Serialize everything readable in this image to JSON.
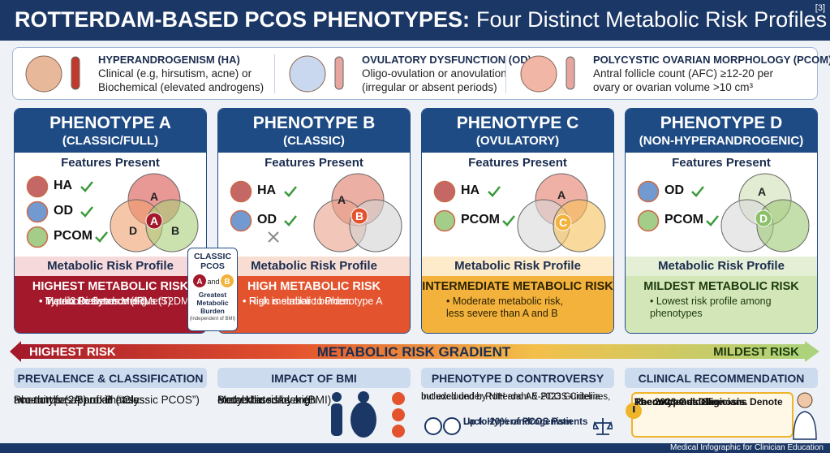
{
  "header": {
    "title_bold": "ROTTERDAM-BASED PCOS PHENOTYPES:",
    "title_rest": "Four Distinct Metabolic Risk Profiles",
    "ref": "[3]"
  },
  "criteria": [
    {
      "title": "HYPERANDROGENISM (HA)",
      "lines": [
        "Clinical (e.g, hirsutism, acne) or",
        "Biochemical (elevated androgens)"
      ]
    },
    {
      "title": "OVULATORY DYSFUNCTION (OD)",
      "lines": [
        "Oligo-ovulation or anovulation",
        "(irregular or absent periods)"
      ]
    },
    {
      "title": "POLYCYSTIC OVARIAN MORPHOLOGY (PCOM)",
      "lines": [
        "Antral follicle count (AFC) ≥12-20 per",
        "ovary or ovarian volume >10 cm³"
      ]
    }
  ],
  "phenotypes": [
    {
      "name": "PHENOTYPE A",
      "sub": "(CLASSIC/FULL)",
      "features_heading": "Features Present",
      "features": [
        "HA",
        "OD",
        "PCOM"
      ],
      "venn_labels": [
        "A",
        "A",
        "D",
        "B"
      ],
      "risk_heading": "Metabolic Risk Profile",
      "risk_level": "HIGHEST METABOLIC RISK",
      "bullets": [
        "Insulin Resistance (IR)",
        "Metabolic Syndrome (MetS)",
        "Type 2 Diabetes Mellitus (T2DM)"
      ]
    },
    {
      "name": "PHENOTYPE B",
      "sub": "(CLASSIC)",
      "features_heading": "Features Present",
      "features": [
        "HA",
        "OD"
      ],
      "venn_labels": [
        "A",
        "B"
      ],
      "risk_heading": "Metabolic Risk Profile",
      "risk_level": "HIGH METABOLIC RISK",
      "bullets": [
        "Risk is similar to Phenotype A",
        "High metabolic burden"
      ]
    },
    {
      "name": "PHENOTYPE C",
      "sub": "(OVULATORY)",
      "features_heading": "Features Present",
      "features": [
        "HA",
        "PCOM"
      ],
      "venn_labels": [
        "A",
        "C"
      ],
      "risk_heading": "Metabolic Risk Profile",
      "risk_level": "INTERMEDIATE METABOLIC RISK",
      "bullets": [
        "Moderate metabolic risk,\nless severe than A and B"
      ]
    },
    {
      "name": "PHENOTYPE D",
      "sub": "(NON-HYPERANDROGENIC)",
      "features_heading": "Features Present",
      "features": [
        "OD",
        "PCOM"
      ],
      "venn_labels": [
        "A",
        "D"
      ],
      "risk_heading": "Metabolic Risk Profile",
      "risk_level": "MILDEST METABOLIC RISK",
      "bullets": [
        "Lowest risk profile among\nphenotypes"
      ]
    }
  ],
  "classic_badge": {
    "title": [
      "CLASSIC",
      "PCOS"
    ],
    "a": "A",
    "and": "and",
    "b": "B",
    "text": [
      "Greatest",
      "Metabolic",
      "Burden"
    ],
    "note": "(Independent of BMI)"
  },
  "gradient": {
    "left": "HIGHEST RISK",
    "center": "METABOLIC RISK GRADIENT",
    "right": "MILDEST RISK"
  },
  "bottom": [
    {
      "title": "PREVALENCE & CLASSIFICATION",
      "lines": [
        "Phenotypes A and B (“Classic PCOS”)",
        "account for approximately",
        "two-thirds (2/3) of all cases."
      ]
    },
    {
      "title": "IMPACT OF BMI",
      "lines": [
        "Metabolic risks are",
        "exacerbated by high",
        "Body Mass Index (BMI)"
      ]
    },
    {
      "title": "PHENOTYPE D CONTROVERSY",
      "lines": [
        "Included under Rotterdam & 2023 Guidelines,",
        "but excluded by NIH and AE-PCOS Criteria."
      ],
      "highlight": [
        "Up to 20% of PCOS Patients",
        "Lack Hyperandrogenism"
      ]
    },
    {
      "title": "CLINICAL RECOMMENDATION",
      "lines": [
        "The 2023 Guideline",
        "Recommends Clinicians Denote",
        "Phenotype at Diagnosis."
      ]
    }
  ],
  "footer": "Medical Infographic for Clinician Education"
}
